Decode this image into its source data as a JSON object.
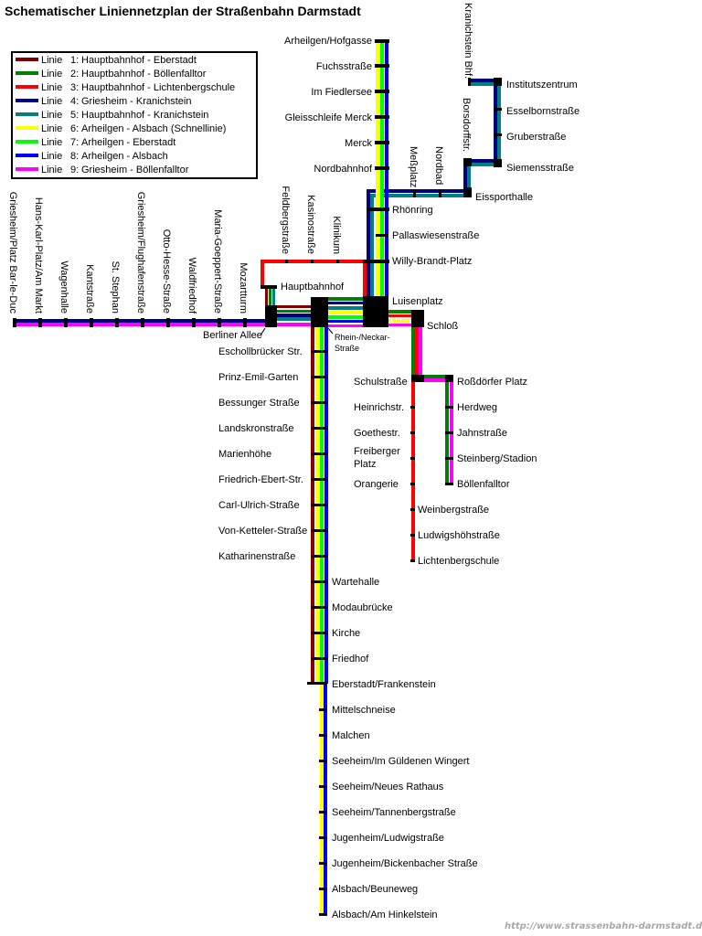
{
  "title": "Schematischer Liniennetzplan der Straßenbahn Darmstadt",
  "legend": [
    {
      "label": "Linie",
      "number": "1:",
      "route": "Hauptbahnhof - Eberstadt",
      "color": "#800000"
    },
    {
      "label": "Linie",
      "number": "2:",
      "route": "Hauptbahnhof - Böllenfalltor",
      "color": "#008000"
    },
    {
      "label": "Linie",
      "number": "3:",
      "route": "Hauptbahnhof - Lichtenbergschule",
      "color": "#ff0000"
    },
    {
      "label": "Linie",
      "number": "4:",
      "route": "Griesheim - Kranichstein",
      "color": "#000080"
    },
    {
      "label": "Linie",
      "number": "5:",
      "route": "Hauptbahnhof - Kranichstein",
      "color": "#008080"
    },
    {
      "label": "Linie",
      "number": "6:",
      "route": "Arheilgen - Alsbach (Schnellinie)",
      "color": "#ffff00"
    },
    {
      "label": "Linie",
      "number": "7:",
      "route": "Arheilgen - Eberstadt",
      "color": "#00ff00"
    },
    {
      "label": "Linie",
      "number": "8:",
      "route": "Arheilgen - Alsbach",
      "color": "#0000ff"
    },
    {
      "label": "Linie",
      "number": "9:",
      "route": "Griesheim - Böllenfalltor",
      "color": "#ff00ff"
    }
  ],
  "stations": {
    "west": [
      "Griesheim/Platz Bar-le-Duc",
      "Hans-Karl-Platz/Am Markt",
      "Wagenhalle",
      "Kantstraße",
      "St. Stephan",
      "Griesheim/Flughafenstraße",
      "Otto-Hesse-Straße",
      "Waldfriedhof",
      "Maria-Goeppert-Straße",
      "Mozartturm"
    ],
    "center_top": [
      "Feldbergstraße",
      "Kasinostraße",
      "Klinikum"
    ],
    "hubs": {
      "berliner_allee": "Berliner Allee",
      "hauptbahnhof": "Hauptbahnhof",
      "rhein_neckar_1": "Rhein-/Neckar-",
      "rhein_neckar_2": "Straße",
      "luisenplatz": "Luisenplatz",
      "schloss": "Schloß"
    },
    "north": [
      "Arheilgen/Hofgasse",
      "Fuchsstraße",
      "Im Fiedlersee",
      "Gleisschleife Merck",
      "Merck",
      "Nordbahnhof"
    ],
    "north_lower": [
      "Rhönring",
      "Pallaswiesenstraße",
      "Willy-Brandt-Platz"
    ],
    "kranichstein_vertical": [
      "Meßplatz",
      "Nordbad",
      "Borsdorffstr.",
      "Kranichstein Bhf."
    ],
    "kranichstein": [
      "Eissporthalle",
      "Siemensstraße",
      "Gruberstraße",
      "Esselbornstraße",
      "Institutszentrum"
    ],
    "south_left": [
      "Eschollbrücker Str.",
      "Prinz-Emil-Garten",
      "Bessunger Straße",
      "Landskronstraße",
      "Marienhöhe",
      "Friedrich-Ebert-Str.",
      "Carl-Ulrich-Straße",
      "Von-Ketteler-Straße",
      "Katharinenstraße"
    ],
    "south_right": [
      "Wartehalle",
      "Modaubrücke",
      "Kirche",
      "Friedhof",
      "Eberstadt/Frankenstein",
      "Mittelschneise",
      "Malchen",
      "Seeheim/Im Güldenen Wingert",
      "Seeheim/Neues Rathaus",
      "Seeheim/Tannenbergstraße",
      "Jugenheim/Ludwigstraße",
      "Jugenheim/Bickenbacher Straße",
      "Alsbach/Beuneweg",
      "Alsbach/Am Hinkelstein"
    ],
    "line3_left": [
      "Schulstraße",
      "Heinrichstr.",
      "Goethestr.",
      "Freiberger",
      "Platz",
      "Orangerie"
    ],
    "line3_right": [
      "Weinbergstraße",
      "Ludwigshöhstraße",
      "Lichtenbergschule"
    ],
    "boellenfalltor": [
      "Roßdörfer Platz",
      "Herdweg",
      "Jahnstraße",
      "Steinberg/Stadion",
      "Böllenfalltor"
    ]
  },
  "url": "http://www.strassenbahn-darmstadt.de"
}
